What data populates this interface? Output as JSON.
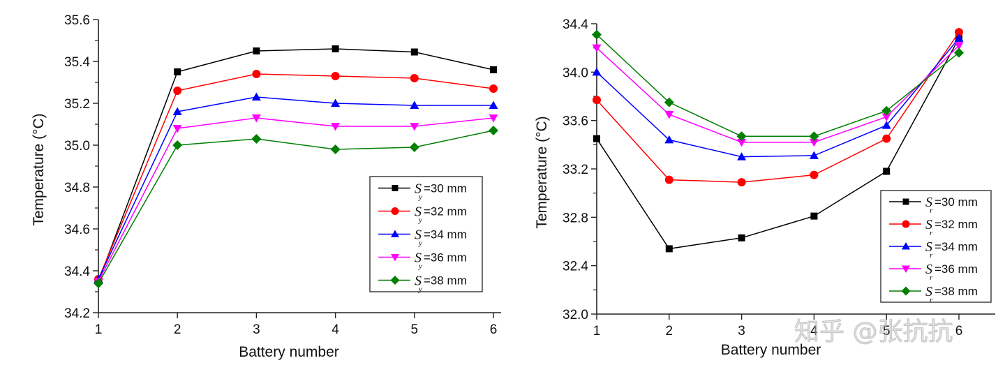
{
  "chart_data": [
    {
      "type": "line",
      "title": "",
      "xlabel": "Battery number",
      "ylabel": "Temperature (°C)",
      "x": [
        1,
        2,
        3,
        4,
        5,
        6
      ],
      "xticks": [
        "1",
        "2",
        "3",
        "4",
        "5",
        "6"
      ],
      "ylim": [
        34.2,
        35.6
      ],
      "yticks": [
        "34.2",
        "34.4",
        "34.6",
        "34.8",
        "35.0",
        "35.2",
        "35.4",
        "35.6"
      ],
      "yminor": 0.1,
      "grid": false,
      "legend_position": "lower-right",
      "legend_symbol": "S",
      "legend_subscript": "y",
      "series": [
        {
          "name": "=30 mm",
          "label_sub": "y",
          "color": "#000000",
          "marker": "square",
          "values": [
            34.35,
            35.35,
            35.45,
            35.46,
            35.445,
            35.36
          ]
        },
        {
          "name": "=32 mm",
          "label_sub": "y",
          "color": "#ff0000",
          "marker": "circle",
          "values": [
            34.36,
            35.26,
            35.34,
            35.33,
            35.32,
            35.27
          ]
        },
        {
          "name": "=34 mm",
          "label_sub": "y",
          "color": "#0000ff",
          "marker": "triangle-up",
          "values": [
            34.36,
            35.16,
            35.23,
            35.2,
            35.19,
            35.19
          ]
        },
        {
          "name": "=36 mm",
          "label_sub": "y",
          "color": "#ff00ff",
          "marker": "triangle-down",
          "values": [
            34.35,
            35.08,
            35.13,
            35.09,
            35.09,
            35.13
          ]
        },
        {
          "name": "=38 mm",
          "label_sub": "y",
          "color": "#007f00",
          "marker": "diamond",
          "values": [
            34.34,
            35.0,
            35.03,
            34.98,
            34.99,
            35.07
          ]
        }
      ]
    },
    {
      "type": "line",
      "title": "",
      "xlabel": "Battery number",
      "ylabel": "Temperature (°C)",
      "x": [
        1,
        2,
        3,
        4,
        5,
        6
      ],
      "xticks": [
        "1",
        "2",
        "3",
        "4",
        "5",
        "6"
      ],
      "ylim": [
        32.0,
        34.4
      ],
      "yticks": [
        "32.0",
        "32.4",
        "32.8",
        "33.2",
        "33.6",
        "34.0",
        "34.4"
      ],
      "yminor": 0.2,
      "grid": false,
      "legend_position": "lower-right",
      "legend_symbol": "S",
      "legend_subscript": "r",
      "series": [
        {
          "name": "=30 mm",
          "label_sub": "r",
          "color": "#000000",
          "marker": "square",
          "values": [
            33.45,
            32.54,
            32.63,
            32.81,
            33.18,
            34.28
          ]
        },
        {
          "name": "=32 mm",
          "label_sub": "r",
          "color": "#ff0000",
          "marker": "circle",
          "values": [
            33.77,
            33.11,
            33.09,
            33.15,
            33.45,
            34.33
          ]
        },
        {
          "name": "=34 mm",
          "label_sub": "r",
          "color": "#0000ff",
          "marker": "triangle-up",
          "values": [
            34.0,
            33.44,
            33.3,
            33.31,
            33.56,
            34.28
          ]
        },
        {
          "name": "=36 mm",
          "label_sub": "r",
          "color": "#ff00ff",
          "marker": "triangle-down",
          "values": [
            34.2,
            33.65,
            33.42,
            33.42,
            33.63,
            34.22
          ]
        },
        {
          "name": "=38 mm",
          "label_sub": "r",
          "color": "#007f00",
          "marker": "diamond",
          "values": [
            34.31,
            33.75,
            33.47,
            33.47,
            33.68,
            34.16
          ]
        }
      ]
    }
  ],
  "watermark": "知乎 @张抗抗"
}
